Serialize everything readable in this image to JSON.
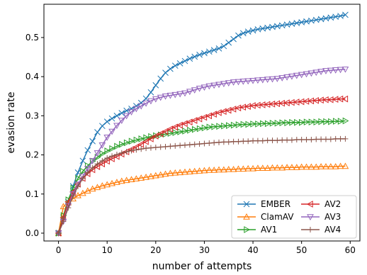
{
  "chart_data": {
    "type": "line",
    "title": "",
    "xlabel": "number of attempts",
    "ylabel": "evasion rate",
    "xlim": [
      -3,
      62
    ],
    "ylim": [
      -0.02,
      0.585
    ],
    "xticks": [
      0,
      10,
      20,
      30,
      40,
      50,
      60
    ],
    "xtick_labels": [
      "0",
      "10",
      "20",
      "30",
      "40",
      "50",
      "60"
    ],
    "yticks": [
      0.0,
      0.1,
      0.2,
      0.3,
      0.4,
      0.5
    ],
    "ytick_labels": [
      "0.0",
      "0.1",
      "0.2",
      "0.3",
      "0.4",
      "0.5"
    ],
    "grid": false,
    "legend_position": "lower-right",
    "legend_columns": 2,
    "x": [
      0,
      1,
      2,
      3,
      4,
      5,
      6,
      7,
      8,
      9,
      10,
      11,
      12,
      13,
      14,
      15,
      16,
      17,
      18,
      19,
      20,
      21,
      22,
      23,
      24,
      25,
      26,
      27,
      28,
      29,
      30,
      31,
      32,
      33,
      34,
      35,
      36,
      37,
      38,
      39,
      40,
      41,
      42,
      43,
      44,
      45,
      46,
      47,
      48,
      49,
      50,
      51,
      52,
      53,
      54,
      55,
      56,
      57,
      58,
      59
    ],
    "series": [
      {
        "name": "EMBER",
        "color": "#1f77b4",
        "marker": "x",
        "values": [
          0.0,
          0.04,
          0.08,
          0.12,
          0.155,
          0.185,
          0.212,
          0.235,
          0.258,
          0.274,
          0.285,
          0.293,
          0.3,
          0.307,
          0.313,
          0.318,
          0.325,
          0.333,
          0.344,
          0.36,
          0.378,
          0.395,
          0.41,
          0.42,
          0.428,
          0.434,
          0.44,
          0.446,
          0.451,
          0.456,
          0.46,
          0.464,
          0.468,
          0.472,
          0.478,
          0.487,
          0.496,
          0.505,
          0.511,
          0.515,
          0.518,
          0.521,
          0.523,
          0.525,
          0.527,
          0.529,
          0.531,
          0.533,
          0.535,
          0.537,
          0.539,
          0.541,
          0.543,
          0.545,
          0.547,
          0.549,
          0.551,
          0.553,
          0.555,
          0.558
        ]
      },
      {
        "name": "ClamAV",
        "color": "#ff7f0e",
        "marker": "triangle-up",
        "values": [
          0.0,
          0.068,
          0.078,
          0.088,
          0.096,
          0.102,
          0.108,
          0.113,
          0.117,
          0.121,
          0.124,
          0.127,
          0.13,
          0.133,
          0.135,
          0.137,
          0.139,
          0.141,
          0.143,
          0.145,
          0.147,
          0.149,
          0.151,
          0.153,
          0.154,
          0.155,
          0.156,
          0.157,
          0.158,
          0.159,
          0.16,
          0.161,
          0.161,
          0.162,
          0.162,
          0.163,
          0.163,
          0.164,
          0.164,
          0.165,
          0.165,
          0.166,
          0.166,
          0.166,
          0.167,
          0.167,
          0.167,
          0.168,
          0.168,
          0.168,
          0.169,
          0.169,
          0.169,
          0.169,
          0.17,
          0.17,
          0.17,
          0.17,
          0.171,
          0.171
        ]
      },
      {
        "name": "AV1",
        "color": "#2ca02c",
        "marker": "triangle-right",
        "values": [
          0.0,
          0.045,
          0.085,
          0.115,
          0.14,
          0.158,
          0.172,
          0.184,
          0.194,
          0.203,
          0.21,
          0.216,
          0.222,
          0.227,
          0.231,
          0.235,
          0.238,
          0.241,
          0.244,
          0.247,
          0.249,
          0.251,
          0.253,
          0.255,
          0.257,
          0.259,
          0.261,
          0.263,
          0.265,
          0.267,
          0.269,
          0.271,
          0.272,
          0.273,
          0.274,
          0.275,
          0.276,
          0.277,
          0.278,
          0.278,
          0.279,
          0.279,
          0.28,
          0.28,
          0.281,
          0.281,
          0.282,
          0.282,
          0.283,
          0.283,
          0.283,
          0.284,
          0.284,
          0.284,
          0.285,
          0.285,
          0.285,
          0.286,
          0.286,
          0.287
        ]
      },
      {
        "name": "AV2",
        "color": "#d62728",
        "marker": "triangle-left",
        "values": [
          0.0,
          0.04,
          0.08,
          0.105,
          0.125,
          0.14,
          0.152,
          0.162,
          0.17,
          0.177,
          0.184,
          0.19,
          0.196,
          0.202,
          0.208,
          0.214,
          0.22,
          0.227,
          0.234,
          0.241,
          0.248,
          0.254,
          0.26,
          0.266,
          0.271,
          0.276,
          0.28,
          0.284,
          0.288,
          0.292,
          0.296,
          0.3,
          0.304,
          0.308,
          0.311,
          0.314,
          0.317,
          0.32,
          0.322,
          0.324,
          0.326,
          0.327,
          0.328,
          0.329,
          0.33,
          0.331,
          0.332,
          0.333,
          0.334,
          0.335,
          0.336,
          0.337,
          0.338,
          0.339,
          0.34,
          0.341,
          0.341,
          0.342,
          0.343,
          0.343
        ]
      },
      {
        "name": "AV3",
        "color": "#9467bd",
        "marker": "triangle-down",
        "values": [
          0.0,
          0.03,
          0.07,
          0.1,
          0.125,
          0.145,
          0.165,
          0.185,
          0.205,
          0.225,
          0.245,
          0.26,
          0.275,
          0.288,
          0.3,
          0.31,
          0.318,
          0.325,
          0.332,
          0.338,
          0.343,
          0.347,
          0.35,
          0.352,
          0.354,
          0.356,
          0.358,
          0.362,
          0.366,
          0.37,
          0.373,
          0.376,
          0.378,
          0.38,
          0.382,
          0.384,
          0.386,
          0.387,
          0.388,
          0.389,
          0.39,
          0.391,
          0.392,
          0.393,
          0.394,
          0.395,
          0.397,
          0.399,
          0.401,
          0.403,
          0.405,
          0.407,
          0.409,
          0.411,
          0.413,
          0.415,
          0.416,
          0.417,
          0.418,
          0.419
        ]
      },
      {
        "name": "AV4",
        "color": "#8c564b",
        "marker": "plus",
        "values": [
          0.0,
          0.03,
          0.065,
          0.095,
          0.12,
          0.14,
          0.155,
          0.167,
          0.177,
          0.185,
          0.192,
          0.197,
          0.201,
          0.205,
          0.208,
          0.211,
          0.213,
          0.215,
          0.217,
          0.218,
          0.219,
          0.22,
          0.221,
          0.222,
          0.223,
          0.224,
          0.225,
          0.226,
          0.227,
          0.228,
          0.229,
          0.23,
          0.231,
          0.232,
          0.233,
          0.233,
          0.234,
          0.234,
          0.235,
          0.235,
          0.236,
          0.236,
          0.236,
          0.237,
          0.237,
          0.237,
          0.238,
          0.238,
          0.238,
          0.239,
          0.239,
          0.239,
          0.239,
          0.24,
          0.24,
          0.24,
          0.24,
          0.241,
          0.241,
          0.241
        ]
      }
    ]
  }
}
